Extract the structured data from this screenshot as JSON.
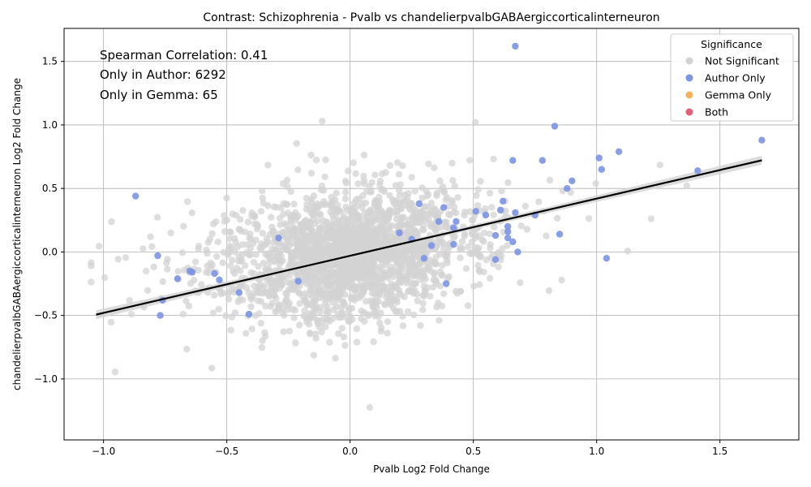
{
  "chart_data": {
    "type": "scatter",
    "title": "Contrast: Schizophrenia - Pvalb vs chandelierpvalbGABAergiccorticalinterneuron",
    "xlabel": "Pvalb Log2 Fold Change",
    "ylabel": "chandelierpvalbGABAergiccorticalinterneuron Log2 Fold Change",
    "xlim": [
      -1.16,
      1.82
    ],
    "ylim": [
      -1.48,
      1.76
    ],
    "x_ticks": [
      -1.0,
      -0.5,
      0.0,
      0.5,
      1.0,
      1.5
    ],
    "x_tick_labels": [
      "−1.0",
      "−0.5",
      "0.0",
      "0.5",
      "1.0",
      "1.5"
    ],
    "y_ticks": [
      -1.0,
      -0.5,
      0.0,
      0.5,
      1.0,
      1.5
    ],
    "y_tick_labels": [
      "−1.0",
      "−0.5",
      "0.0",
      "0.5",
      "1.0",
      "1.5"
    ],
    "grid": true,
    "annotations": [
      "Spearman Correlation: 0.41",
      "Only in Author: 6292",
      "Only in Gemma: 65"
    ],
    "legend": {
      "title": "Significance",
      "placement": "top-right",
      "entries": [
        {
          "label": "Not Significant",
          "color": "#d3d3d3"
        },
        {
          "label": "Author Only",
          "color": "#7b93e3"
        },
        {
          "label": "Gemma Only",
          "color": "#f5b25c"
        },
        {
          "label": "Both",
          "color": "#e0607a"
        }
      ]
    },
    "regression": {
      "slope": 0.45,
      "intercept": -0.03,
      "x_range": [
        -1.03,
        1.67
      ],
      "color": "#000000",
      "ci_color": "#d3d3d3"
    },
    "series": [
      {
        "name": "Author Only",
        "color": "#7b93e3",
        "points": [
          [
            0.67,
            1.62
          ],
          [
            1.67,
            0.88
          ],
          [
            0.83,
            0.99
          ],
          [
            1.09,
            0.79
          ],
          [
            1.01,
            0.74
          ],
          [
            0.66,
            0.72
          ],
          [
            0.78,
            0.72
          ],
          [
            1.02,
            0.65
          ],
          [
            1.41,
            0.64
          ],
          [
            0.9,
            0.56
          ],
          [
            0.88,
            0.5
          ],
          [
            -0.87,
            0.44
          ],
          [
            0.62,
            0.4
          ],
          [
            0.38,
            0.35
          ],
          [
            0.61,
            0.33
          ],
          [
            0.51,
            0.32
          ],
          [
            0.67,
            0.31
          ],
          [
            0.75,
            0.29
          ],
          [
            0.55,
            0.29
          ],
          [
            0.36,
            0.24
          ],
          [
            0.43,
            0.24
          ],
          [
            0.64,
            0.2
          ],
          [
            0.42,
            0.19
          ],
          [
            0.64,
            0.16
          ],
          [
            0.85,
            0.14
          ],
          [
            0.59,
            0.13
          ],
          [
            0.64,
            0.11
          ],
          [
            0.66,
            0.08
          ],
          [
            0.42,
            0.06
          ],
          [
            0.68,
            0.0
          ],
          [
            1.04,
            -0.05
          ],
          [
            -0.78,
            -0.03
          ],
          [
            0.59,
            -0.06
          ],
          [
            -0.65,
            -0.15
          ],
          [
            -0.64,
            -0.16
          ],
          [
            -0.55,
            -0.17
          ],
          [
            -0.7,
            -0.21
          ],
          [
            -0.53,
            -0.22
          ],
          [
            0.39,
            -0.25
          ],
          [
            -0.76,
            -0.38
          ],
          [
            -0.77,
            -0.5
          ],
          [
            -0.41,
            -0.49
          ],
          [
            0.28,
            0.38
          ],
          [
            0.3,
            -0.05
          ],
          [
            0.2,
            0.15
          ],
          [
            -0.29,
            0.11
          ],
          [
            -0.45,
            -0.32
          ],
          [
            0.33,
            0.05
          ],
          [
            0.25,
            0.1
          ],
          [
            -0.21,
            -0.23
          ]
        ]
      }
    ]
  }
}
